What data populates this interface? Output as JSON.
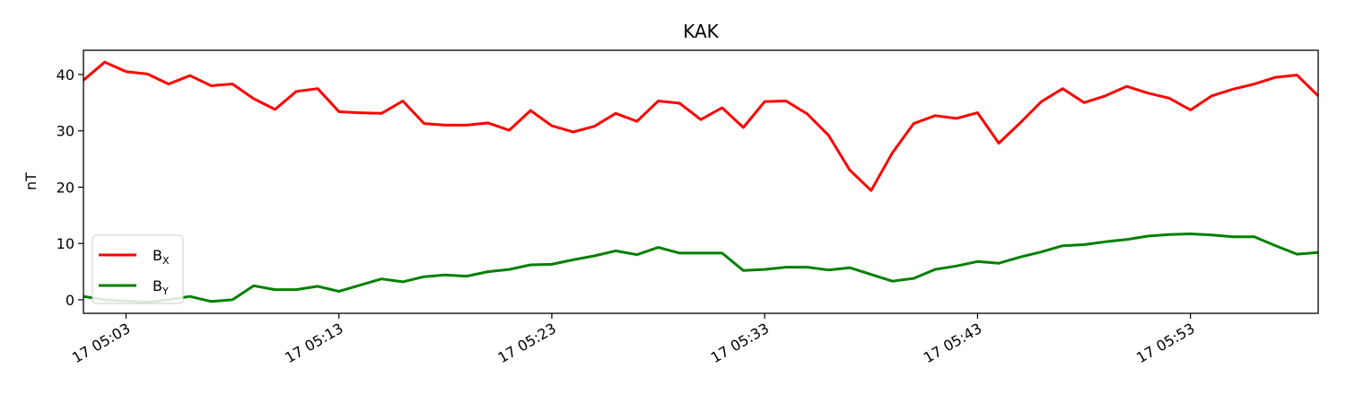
{
  "chart_data": {
    "type": "line",
    "title": "KAK",
    "xlabel": "",
    "ylabel": "nT",
    "x": [
      "05:01",
      "05:02",
      "05:03",
      "05:04",
      "05:05",
      "05:06",
      "05:07",
      "05:08",
      "05:09",
      "05:10",
      "05:11",
      "05:12",
      "05:13",
      "05:14",
      "05:15",
      "05:16",
      "05:17",
      "05:18",
      "05:19",
      "05:20",
      "05:21",
      "05:22",
      "05:23",
      "05:24",
      "05:25",
      "05:26",
      "05:27",
      "05:28",
      "05:29",
      "05:30",
      "05:31",
      "05:32",
      "05:33",
      "05:34",
      "05:35",
      "05:36",
      "05:37",
      "05:38",
      "05:39",
      "05:40",
      "05:41",
      "05:42",
      "05:43",
      "05:44",
      "05:45",
      "05:46",
      "05:47",
      "05:48",
      "05:49",
      "05:50",
      "05:51",
      "05:52",
      "05:53",
      "05:54",
      "05:55",
      "05:56",
      "05:57",
      "05:58",
      "05:59"
    ],
    "series": [
      {
        "name": "B_X",
        "label_main": "B",
        "label_sub": "X",
        "color": "#ff0000",
        "values": [
          39.0,
          42.2,
          40.5,
          40.1,
          38.3,
          39.8,
          38.0,
          38.3,
          35.7,
          33.8,
          37.0,
          37.5,
          33.4,
          33.2,
          33.1,
          35.3,
          31.3,
          31.0,
          31.0,
          31.4,
          30.1,
          33.6,
          30.9,
          29.8,
          30.8,
          33.1,
          31.7,
          35.3,
          34.9,
          32.0,
          34.1,
          30.6,
          35.2,
          35.3,
          33.0,
          29.2,
          23.0,
          19.4,
          26.1,
          31.3,
          32.7,
          32.2,
          33.2,
          27.8,
          31.4,
          35.2,
          37.5,
          35.0,
          36.2,
          37.9,
          36.7,
          35.8,
          33.7,
          36.2,
          37.4,
          38.3,
          39.5,
          39.9,
          36.2
        ]
      },
      {
        "name": "B_Y",
        "label_main": "B",
        "label_sub": "Y",
        "color": "#008000",
        "values": [
          0.6,
          0.0,
          -0.2,
          -0.4,
          0.0,
          0.6,
          -0.3,
          0.0,
          2.5,
          1.8,
          1.8,
          2.4,
          1.5,
          2.6,
          3.7,
          3.2,
          4.1,
          4.4,
          4.2,
          5.0,
          5.4,
          6.2,
          6.3,
          7.1,
          7.8,
          8.7,
          8.0,
          9.3,
          8.3,
          8.3,
          8.3,
          5.2,
          5.4,
          5.8,
          5.8,
          5.3,
          5.7,
          4.5,
          3.3,
          3.8,
          5.4,
          6.0,
          6.8,
          6.5,
          7.6,
          8.5,
          9.6,
          9.8,
          10.3,
          10.7,
          11.3,
          11.6,
          11.7,
          11.5,
          11.2,
          11.2,
          9.6,
          8.1,
          8.4
        ]
      }
    ],
    "xticks": [
      "17 05:03",
      "17 05:13",
      "17 05:23",
      "17 05:33",
      "17 05:43",
      "17 05:53"
    ],
    "yticks": [
      "0",
      "10",
      "20",
      "30",
      "40"
    ],
    "ylim": [
      -2.4,
      44.3
    ],
    "legend_position": "lower-left",
    "grid": false
  }
}
